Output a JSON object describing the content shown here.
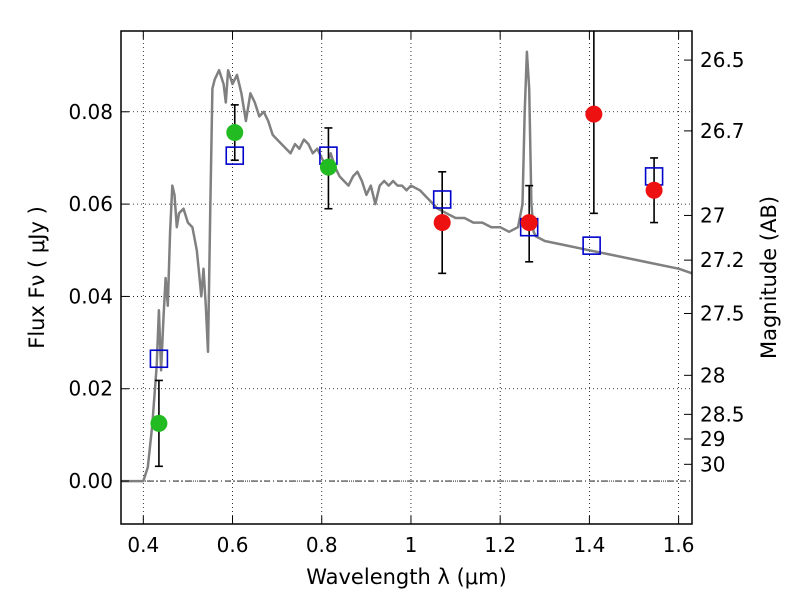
{
  "chart_data": {
    "type": "scatter",
    "xlabel": "Wavelength  λ (μm)",
    "ylabel": "Flux  Fν  ( μJy )",
    "y2label": "Magnitude (AB)",
    "xlim": [
      0.35,
      1.63
    ],
    "ylim": [
      -0.0093,
      0.0975
    ],
    "grid": true,
    "zero_line": 0.0,
    "x_ticks": [
      0.4,
      0.6,
      0.8,
      1.0,
      1.2,
      1.4,
      1.6
    ],
    "x_tick_labels": [
      "0.4",
      "0.6",
      "0.8",
      "1",
      "1.2",
      "1.4",
      "1.6"
    ],
    "y_ticks": [
      0.0,
      0.02,
      0.04,
      0.06,
      0.08
    ],
    "y_tick_labels": [
      "0.00",
      "0.02",
      "0.04",
      "0.06",
      "0.08"
    ],
    "y2_tick_labels": [
      "26.5",
      "26.7",
      "27",
      "27.2",
      "27.5",
      "28",
      "28.5",
      "29",
      "30"
    ],
    "colors": {
      "model": "#808080",
      "model_photometry": "#0000cc",
      "optical_obs": "#22bb22",
      "nir_obs": "#ee1111",
      "error_bar": "#000000"
    },
    "series": [
      {
        "kind": "line",
        "x": [
          0.35,
          0.38,
          0.4,
          0.41,
          0.42,
          0.43,
          0.435,
          0.44,
          0.445,
          0.45,
          0.455,
          0.46,
          0.465,
          0.47,
          0.475,
          0.48,
          0.49,
          0.5,
          0.51,
          0.52,
          0.525,
          0.53,
          0.535,
          0.54,
          0.545,
          0.55,
          0.555,
          0.56,
          0.57,
          0.58,
          0.585,
          0.59,
          0.6,
          0.61,
          0.62,
          0.63,
          0.64,
          0.65,
          0.66,
          0.67,
          0.68,
          0.69,
          0.7,
          0.71,
          0.72,
          0.73,
          0.74,
          0.75,
          0.76,
          0.77,
          0.78,
          0.79,
          0.8,
          0.81,
          0.82,
          0.83,
          0.84,
          0.85,
          0.86,
          0.87,
          0.88,
          0.89,
          0.9,
          0.91,
          0.92,
          0.93,
          0.94,
          0.95,
          0.96,
          0.97,
          0.98,
          0.99,
          1.0,
          1.02,
          1.04,
          1.06,
          1.08,
          1.1,
          1.12,
          1.14,
          1.16,
          1.18,
          1.2,
          1.22,
          1.24,
          1.25,
          1.255,
          1.26,
          1.265,
          1.27,
          1.275,
          1.28,
          1.3,
          1.35,
          1.4,
          1.45,
          1.5,
          1.55,
          1.6,
          1.63
        ],
        "y": [
          0.0,
          0.0,
          0.0,
          0.003,
          0.012,
          0.025,
          0.037,
          0.024,
          0.035,
          0.044,
          0.038,
          0.054,
          0.064,
          0.062,
          0.055,
          0.058,
          0.059,
          0.056,
          0.055,
          0.05,
          0.045,
          0.04,
          0.046,
          0.038,
          0.028,
          0.058,
          0.085,
          0.087,
          0.089,
          0.086,
          0.082,
          0.089,
          0.086,
          0.088,
          0.084,
          0.078,
          0.084,
          0.082,
          0.079,
          0.08,
          0.078,
          0.075,
          0.074,
          0.073,
          0.072,
          0.071,
          0.073,
          0.072,
          0.074,
          0.073,
          0.071,
          0.072,
          0.07,
          0.068,
          0.071,
          0.068,
          0.066,
          0.065,
          0.064,
          0.066,
          0.067,
          0.065,
          0.062,
          0.064,
          0.06,
          0.064,
          0.065,
          0.064,
          0.065,
          0.064,
          0.064,
          0.063,
          0.064,
          0.063,
          0.061,
          0.059,
          0.058,
          0.057,
          0.057,
          0.056,
          0.056,
          0.055,
          0.055,
          0.054,
          0.055,
          0.06,
          0.08,
          0.093,
          0.085,
          0.06,
          0.054,
          0.053,
          0.052,
          0.051,
          0.05,
          0.049,
          0.048,
          0.047,
          0.046,
          0.045
        ]
      },
      {
        "kind": "model_photometry",
        "marker": "open-square",
        "x": [
          0.435,
          0.605,
          0.815,
          1.07,
          1.265,
          1.405,
          1.545
        ],
        "y": [
          0.0265,
          0.0705,
          0.0705,
          0.061,
          0.055,
          0.051,
          0.066
        ]
      },
      {
        "kind": "observed_optical",
        "marker": "filled-circle",
        "x": [
          0.435,
          0.605,
          0.815
        ],
        "y": [
          0.0125,
          0.0755,
          0.068
        ],
        "yerr_low": [
          0.0093,
          0.006,
          0.009
        ],
        "yerr_high": [
          0.0093,
          0.006,
          0.0085
        ]
      },
      {
        "kind": "observed_nir",
        "marker": "filled-circle",
        "x": [
          1.07,
          1.265,
          1.41,
          1.545
        ],
        "y": [
          0.056,
          0.056,
          0.0795,
          0.063
        ],
        "yerr_low": [
          0.011,
          0.0085,
          0.0215,
          0.007
        ],
        "yerr_high": [
          0.011,
          0.008,
          0.0205,
          0.007
        ]
      }
    ]
  }
}
